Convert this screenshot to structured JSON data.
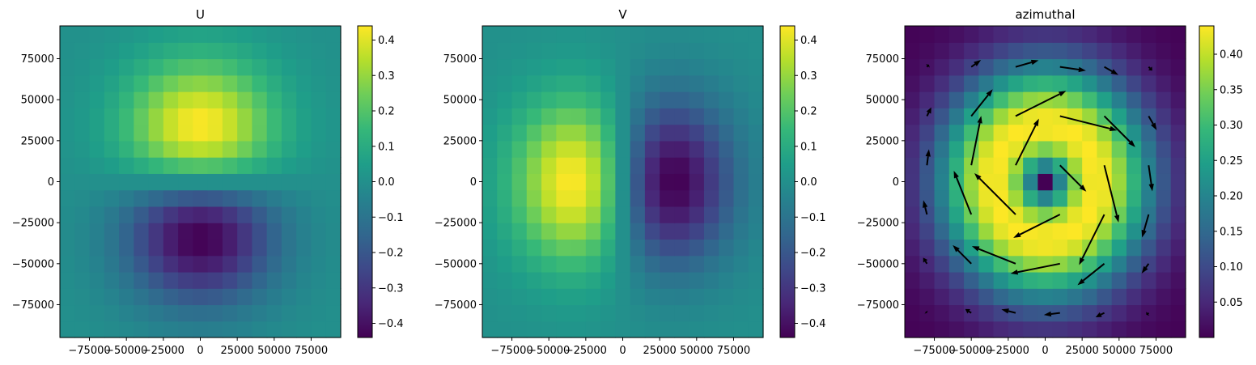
{
  "chart_data": [
    {
      "type": "heatmap",
      "title": "U",
      "xlim": [
        -95000,
        95000
      ],
      "ylim": [
        -95000,
        95000
      ],
      "xticks": [
        -75000,
        -50000,
        -25000,
        0,
        25000,
        50000,
        75000
      ],
      "xtick_labels": [
        "−75000",
        "−50000",
        "−25000",
        "0",
        "25000",
        "50000",
        "75000"
      ],
      "yticks": [
        -75000,
        -50000,
        -25000,
        0,
        25000,
        50000,
        75000
      ],
      "ytick_labels": [
        "−75000",
        "−50000",
        "−25000",
        "0",
        "25000",
        "50000",
        "75000"
      ],
      "grid": {
        "nx": 19,
        "ny": 19,
        "cell_size": 10000,
        "center_origin": true
      },
      "field": "u = 0.44 * (y/35000) * exp(0.5*(1 - r^2/35000^2))",
      "peak_value": 0.44,
      "radius_of_max_wind": 35000,
      "colormap": "viridis",
      "colorbar": {
        "vmin": -0.44,
        "vmax": 0.44,
        "ticks": [
          -0.4,
          -0.3,
          -0.2,
          -0.1,
          0.0,
          0.1,
          0.2,
          0.3,
          0.4
        ],
        "tick_labels": [
          "−0.4",
          "−0.3",
          "−0.2",
          "−0.1",
          "0.0",
          "0.1",
          "0.2",
          "0.3",
          "0.4"
        ]
      }
    },
    {
      "type": "heatmap",
      "title": "V",
      "xlim": [
        -95000,
        95000
      ],
      "ylim": [
        -95000,
        95000
      ],
      "xticks": [
        -75000,
        -50000,
        -25000,
        0,
        25000,
        50000,
        75000
      ],
      "xtick_labels": [
        "−75000",
        "−50000",
        "−25000",
        "0",
        "25000",
        "50000",
        "75000"
      ],
      "yticks": [
        -75000,
        -50000,
        -25000,
        0,
        25000,
        50000,
        75000
      ],
      "ytick_labels": [
        "−75000",
        "−50000",
        "−25000",
        "0",
        "25000",
        "50000",
        "75000"
      ],
      "grid": {
        "nx": 19,
        "ny": 19,
        "cell_size": 10000,
        "center_origin": true
      },
      "field": "v = -0.44 * (x/35000) * exp(0.5*(1 - r^2/35000^2))",
      "peak_value": 0.44,
      "radius_of_max_wind": 35000,
      "colormap": "viridis",
      "colorbar": {
        "vmin": -0.44,
        "vmax": 0.44,
        "ticks": [
          -0.4,
          -0.3,
          -0.2,
          -0.1,
          0.0,
          0.1,
          0.2,
          0.3,
          0.4
        ],
        "tick_labels": [
          "−0.4",
          "−0.3",
          "−0.2",
          "−0.1",
          "0.0",
          "0.1",
          "0.2",
          "0.3",
          "0.4"
        ]
      }
    },
    {
      "type": "heatmap",
      "title": "azimuthal",
      "xlim": [
        -95000,
        95000
      ],
      "ylim": [
        -95000,
        95000
      ],
      "xticks": [
        -75000,
        -50000,
        -25000,
        0,
        25000,
        50000,
        75000
      ],
      "xtick_labels": [
        "−75000",
        "−50000",
        "−25000",
        "0",
        "25000",
        "50000",
        "75000"
      ],
      "yticks": [
        -75000,
        -50000,
        -25000,
        0,
        25000,
        50000,
        75000
      ],
      "ytick_labels": [
        "−75000",
        "−50000",
        "−25000",
        "0",
        "25000",
        "50000",
        "75000"
      ],
      "grid": {
        "nx": 19,
        "ny": 19,
        "cell_size": 10000,
        "center_origin": true
      },
      "field": "speed = 0.44 * (r/35000) * exp(0.5*(1 - r^2/35000^2))",
      "peak_value": 0.44,
      "radius_of_max_wind": 35000,
      "colormap": "viridis",
      "quiver": {
        "step": 3,
        "offset": 1,
        "color": "#000000"
      },
      "colorbar": {
        "vmin": 0.0,
        "vmax": 0.44,
        "ticks": [
          0.05,
          0.1,
          0.15,
          0.2,
          0.25,
          0.3,
          0.35,
          0.4
        ],
        "tick_labels": [
          "0.05",
          "0.10",
          "0.15",
          "0.20",
          "0.25",
          "0.30",
          "0.35",
          "0.40"
        ]
      }
    }
  ]
}
